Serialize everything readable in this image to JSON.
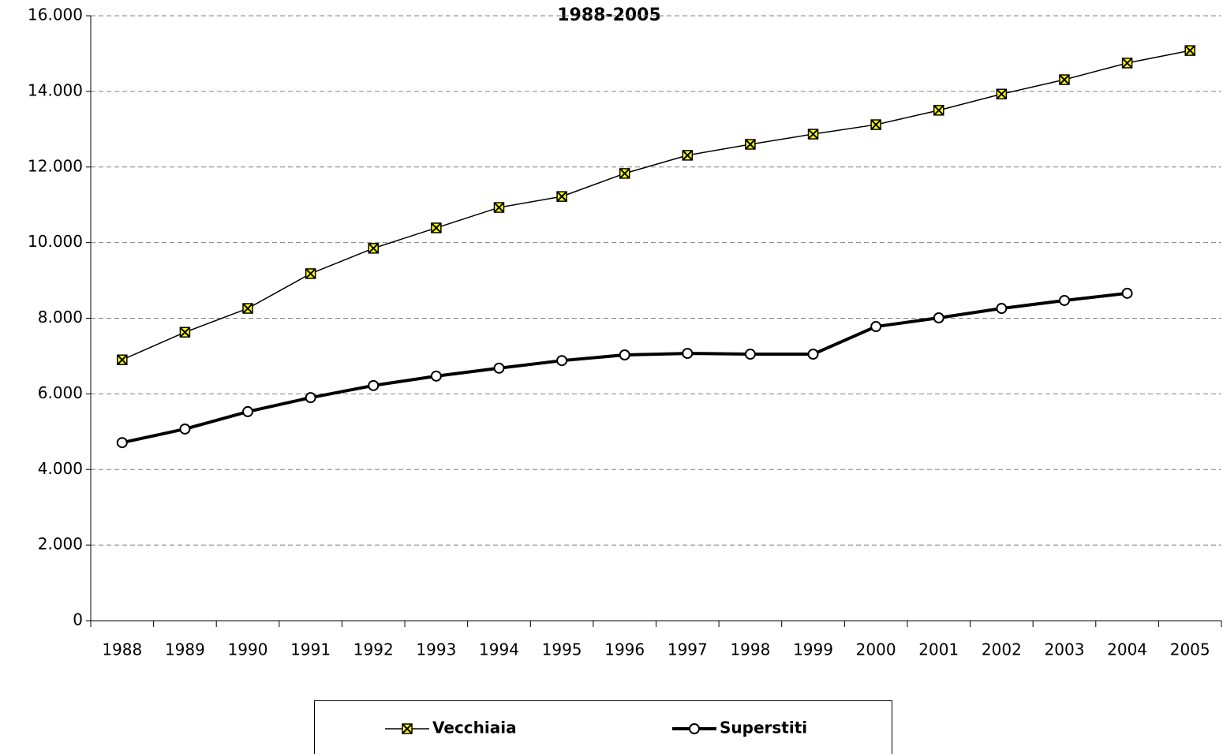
{
  "chart_data": {
    "type": "line",
    "title": "1988-2005",
    "categories": [
      "1988",
      "1989",
      "1990",
      "1991",
      "1992",
      "1993",
      "1994",
      "1995",
      "1996",
      "1997",
      "1998",
      "1999",
      "2000",
      "2001",
      "2002",
      "2003",
      "2004",
      "2005"
    ],
    "series": [
      {
        "name": "Vecchiaia",
        "color": "#000000",
        "marker": "x-square",
        "marker_fill": "#ffff00",
        "line_width": 1.5,
        "values": [
          6900,
          7630,
          8260,
          9180,
          9850,
          10390,
          10930,
          11220,
          11830,
          12310,
          12600,
          12870,
          13120,
          13500,
          13930,
          14310,
          14750,
          15080
        ]
      },
      {
        "name": "Superstiti",
        "color": "#000000",
        "marker": "circle",
        "marker_fill": "#ffffff",
        "line_width": 4,
        "values": [
          4710,
          5070,
          5530,
          5900,
          6220,
          6470,
          6680,
          6880,
          7030,
          7070,
          7050,
          7050,
          7780,
          8010,
          8260,
          8470,
          8660,
          null
        ]
      }
    ],
    "ylim": [
      0,
      16000
    ],
    "yticks": [
      0,
      {
        "value": 2000,
        "label": "2.000"
      },
      {
        "value": 4000,
        "label": "4.000"
      },
      {
        "value": 6000,
        "label": "6.000"
      },
      {
        "value": 8000,
        "label": "8.000"
      },
      {
        "value": 10000,
        "label": "10.000"
      },
      {
        "value": 12000,
        "label": "12.000"
      },
      {
        "value": 14000,
        "label": "14.000"
      },
      {
        "value": 16000,
        "label": "16.000"
      }
    ],
    "grid": true,
    "legend": "bottom"
  }
}
